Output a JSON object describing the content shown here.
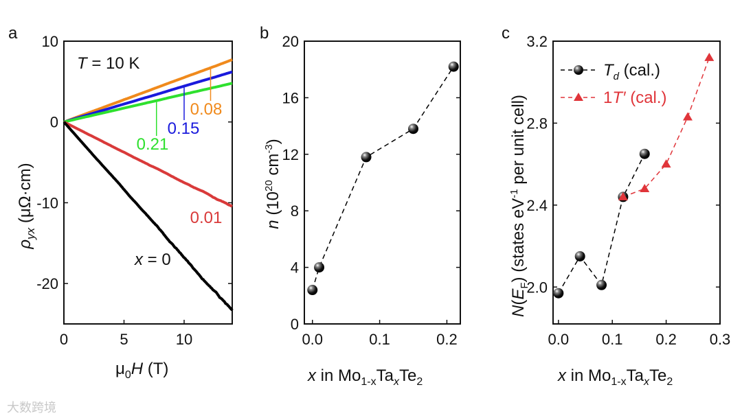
{
  "watermark": "大数跨境",
  "chart_data": [
    {
      "panel": "a",
      "type": "line",
      "annotation": "T = 10 K",
      "xlabel": "μ0H (T)",
      "ylabel": "ρyx (μΩ·cm)",
      "xlim": [
        0,
        14
      ],
      "ylim": [
        -25,
        10
      ],
      "xticks": [
        0,
        5,
        10
      ],
      "yticks": [
        10,
        0,
        -10,
        -20
      ],
      "series": [
        {
          "name": "0.08",
          "color": "#f08a1c",
          "x": [
            0,
            14
          ],
          "y": [
            0,
            7.7
          ],
          "label_at": 12.2
        },
        {
          "name": "0.15",
          "color": "#1a1adc",
          "x": [
            0,
            14
          ],
          "y": [
            0,
            6.2
          ],
          "label_at": 10.0
        },
        {
          "name": "0.21",
          "color": "#2ee02e",
          "x": [
            0,
            14
          ],
          "y": [
            0,
            4.8
          ],
          "label_at": 7.7
        },
        {
          "name": "0.01",
          "color": "#d93a3a",
          "x": [
            0,
            14
          ],
          "y": [
            0,
            -10.5
          ]
        },
        {
          "name": "x = 0",
          "color": "#000000",
          "x": [
            0,
            14
          ],
          "y": [
            0,
            -23.5
          ]
        }
      ]
    },
    {
      "panel": "b",
      "type": "line",
      "xlabel": "x in Mo1-xTaxTe2",
      "ylabel": "n (10^20 cm^-3)",
      "xlim": [
        -0.012,
        0.22
      ],
      "ylim": [
        0,
        20
      ],
      "xticks": [
        "0.0",
        "0.1",
        "0.2"
      ],
      "yticks": [
        0,
        4,
        8,
        12,
        16,
        20
      ],
      "series": [
        {
          "name": "n",
          "color": "#000000",
          "x": [
            0,
            0.01,
            0.08,
            0.15,
            0.21
          ],
          "y": [
            2.4,
            4.0,
            11.8,
            13.8,
            18.2
          ]
        }
      ]
    },
    {
      "panel": "c",
      "type": "line",
      "xlabel": "x in Mo1-xTaxTe2",
      "ylabel": "N(EF) (states eV-1 per unit cell)",
      "xlim": [
        -0.01,
        0.3
      ],
      "ylim": [
        1.82,
        3.2
      ],
      "xticks": [
        "0.0",
        "0.1",
        "0.2",
        "0.3"
      ],
      "yticks": [
        "2.0",
        "2.4",
        "2.8",
        "3.2"
      ],
      "legend": "top-left",
      "series": [
        {
          "name": "Td (cal.)",
          "color": "#000000",
          "marker": "sphere",
          "x": [
            0,
            0.04,
            0.08,
            0.12,
            0.16
          ],
          "y": [
            1.97,
            2.15,
            2.01,
            2.44,
            2.65
          ]
        },
        {
          "name": "1T′ (cal.)",
          "color": "#e0353a",
          "marker": "triangle",
          "x": [
            0.12,
            0.16,
            0.2,
            0.24,
            0.28
          ],
          "y": [
            2.44,
            2.48,
            2.6,
            2.83,
            3.12
          ]
        }
      ]
    }
  ],
  "labels": {
    "panel_a": "a",
    "panel_b": "b",
    "panel_c": "c",
    "a_annot_T": "T",
    "a_annot_rest": " = 10 K",
    "a_xlabel_mu": "μ",
    "a_xlabel_sub": "0",
    "a_xlabel_H": "H",
    "a_xlabel_rest": " (T)",
    "a_ylabel_rho": "ρ",
    "a_ylabel_sub": "yx",
    "a_ylabel_rest": " (μΩ·cm)",
    "x0_x": "x",
    "x0_rest": " = 0",
    "b_ylabel_n": "n",
    "b_ylabel_rest": " (10",
    "b_ylabel_sup": "20",
    "b_ylabel_rest2": " cm",
    "b_ylabel_sup2": "-3",
    "b_ylabel_close": ")",
    "xl_x": "x",
    "xl_in": " in Mo",
    "xl_sub1": "1-x",
    "xl_ta": "Ta",
    "xl_sub2": "x",
    "xl_te": "Te",
    "xl_sub3": "2",
    "c_ylabel_N": "N",
    "c_ylabel_open": "(",
    "c_ylabel_E": "E",
    "c_ylabel_F": "F",
    "c_ylabel_rest": ")  (states eV",
    "c_ylabel_sup": "-1",
    "c_ylabel_end": " per unit cell)",
    "leg_td_T": "T",
    "leg_td_d": "d",
    "leg_td_rest": "  (cal.)",
    "leg_1t_1": "1",
    "leg_1t_T": "T′",
    "leg_1t_rest": " (cal.)"
  }
}
